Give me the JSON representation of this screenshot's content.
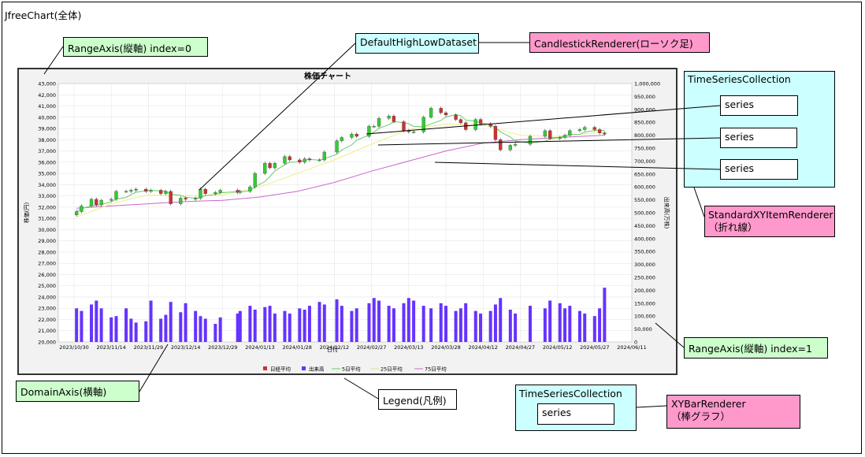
{
  "labels": {
    "chart_whole": "JfreeChart(全体)",
    "range_axis_0": "RangeAxis(縦軸) index=0",
    "dataset_hl": "DefaultHighLowDataset",
    "candle_renderer": "CandlestickRenderer(ローソク足)",
    "ts_collection_top": "TimeSeriesCollection",
    "series_a": "series",
    "series_b": "series",
    "series_c": "series",
    "xy_item_renderer_l1": "StandardXYItemRenderer",
    "xy_item_renderer_l2": "（折れ線）",
    "range_axis_1": "RangeAxis(縦軸) index=1",
    "domain_axis": "DomainAxis(横軸)",
    "legend": "Legend(凡例)",
    "ts_collection_bottom": "TimeSeriesCollection",
    "series_d": "series",
    "bar_renderer_l1": "XYBarRenderer",
    "bar_renderer_l2": "（棒グラフ）"
  },
  "colors": {
    "green_box": "#ccffcc",
    "cyan_box": "#ccffff",
    "pink_box": "#ff99cc",
    "candle_up": "#33cc33",
    "candle_down": "#cc3333",
    "volume_bar": "#6633ff",
    "ma5": "#66cc66",
    "ma25": "#eeee88",
    "ma75": "#cc66cc"
  },
  "chart_data": {
    "type": "candlestick",
    "title": "株価チャート",
    "xlabel": "日付",
    "ylabel_left": "株価(円)",
    "ylabel_right": "出来高(万株)",
    "ylim_left": [
      20000,
      43000
    ],
    "ylim_right": [
      0,
      1000000
    ],
    "y_ticks_left": [
      "20,000",
      "21,000",
      "22,000",
      "23,000",
      "24,000",
      "25,000",
      "26,000",
      "27,000",
      "28,000",
      "29,000",
      "30,000",
      "31,000",
      "32,000",
      "33,000",
      "34,000",
      "35,000",
      "36,000",
      "37,000",
      "38,000",
      "39,000",
      "40,000",
      "41,000",
      "42,000",
      "43,000"
    ],
    "y_ticks_right": [
      "0",
      "50,000",
      "100,000",
      "150,000",
      "200,000",
      "250,000",
      "300,000",
      "350,000",
      "400,000",
      "450,000",
      "500,000",
      "550,000",
      "600,000",
      "650,000",
      "700,000",
      "750,000",
      "800,000",
      "850,000",
      "900,000",
      "950,000",
      "1,000,000"
    ],
    "x_ticks": [
      "2023/10/30",
      "2023/11/14",
      "2023/11/29",
      "2023/12/14",
      "2023/12/29",
      "2024/01/13",
      "2024/01/28",
      "2024/02/12",
      "2024/02/27",
      "2024/03/13",
      "2024/03/28",
      "2024/04/12",
      "2024/04/27",
      "2024/05/12",
      "2024/05/27",
      "2024/06/11"
    ],
    "legend": [
      "日経平均",
      "出来高",
      "5日平均",
      "25日平均",
      "75日平均"
    ],
    "x_start": "2023/10/30",
    "x_end": "2024/06/11",
    "close_series": [
      [
        "2023/10/31",
        31600
      ],
      [
        "2023/11/02",
        32100
      ],
      [
        "2023/11/06",
        32700
      ],
      [
        "2023/11/08",
        32200
      ],
      [
        "2023/11/10",
        32600
      ],
      [
        "2023/11/14",
        32700
      ],
      [
        "2023/11/16",
        33400
      ],
      [
        "2023/11/20",
        33400
      ],
      [
        "2023/11/22",
        33500
      ],
      [
        "2023/11/24",
        33600
      ],
      [
        "2023/11/28",
        33400
      ],
      [
        "2023/11/30",
        33500
      ],
      [
        "2023/12/04",
        33200
      ],
      [
        "2023/12/06",
        33400
      ],
      [
        "2023/12/08",
        32300
      ],
      [
        "2023/12/12",
        32800
      ],
      [
        "2023/12/14",
        32700
      ],
      [
        "2023/12/18",
        32800
      ],
      [
        "2023/12/20",
        33600
      ],
      [
        "2023/12/22",
        33200
      ],
      [
        "2023/12/26",
        33300
      ],
      [
        "2023/12/28",
        33500
      ],
      [
        "2024/01/04",
        33300
      ],
      [
        "2024/01/05",
        33400
      ],
      [
        "2024/01/09",
        33800
      ],
      [
        "2024/01/11",
        35000
      ],
      [
        "2024/01/15",
        35900
      ],
      [
        "2024/01/17",
        35500
      ],
      [
        "2024/01/19",
        35900
      ],
      [
        "2024/01/23",
        36500
      ],
      [
        "2024/01/25",
        36200
      ],
      [
        "2024/01/29",
        36000
      ],
      [
        "2024/01/31",
        36300
      ],
      [
        "2024/02/02",
        36200
      ],
      [
        "2024/02/06",
        36200
      ],
      [
        "2024/02/08",
        36900
      ],
      [
        "2024/02/13",
        37900
      ],
      [
        "2024/02/15",
        38200
      ],
      [
        "2024/02/19",
        38500
      ],
      [
        "2024/02/21",
        38300
      ],
      [
        "2024/02/26",
        39200
      ],
      [
        "2024/02/28",
        39200
      ],
      [
        "2024/03/01",
        39900
      ],
      [
        "2024/03/05",
        40100
      ],
      [
        "2024/03/07",
        39600
      ],
      [
        "2024/03/11",
        38800
      ],
      [
        "2024/03/13",
        38700
      ],
      [
        "2024/03/15",
        38700
      ],
      [
        "2024/03/19",
        40000
      ],
      [
        "2024/03/22",
        40800
      ],
      [
        "2024/03/26",
        40400
      ],
      [
        "2024/03/28",
        40200
      ],
      [
        "2024/04/01",
        39800
      ],
      [
        "2024/04/03",
        39500
      ],
      [
        "2024/04/05",
        38900
      ],
      [
        "2024/04/09",
        39800
      ],
      [
        "2024/04/11",
        39400
      ],
      [
        "2024/04/15",
        39200
      ],
      [
        "2024/04/17",
        38000
      ],
      [
        "2024/04/19",
        37100
      ],
      [
        "2024/04/23",
        37500
      ],
      [
        "2024/04/25",
        37600
      ],
      [
        "2024/05/01",
        38300
      ],
      [
        "2024/05/07",
        38800
      ],
      [
        "2024/05/09",
        38100
      ],
      [
        "2024/05/13",
        38200
      ],
      [
        "2024/05/15",
        38400
      ],
      [
        "2024/05/17",
        38800
      ],
      [
        "2024/05/21",
        38900
      ],
      [
        "2024/05/23",
        39100
      ],
      [
        "2024/05/27",
        38900
      ],
      [
        "2024/05/29",
        38600
      ],
      [
        "2024/05/31",
        38500
      ]
    ],
    "volume_series": [
      [
        "2023/10/31",
        130000
      ],
      [
        "2023/11/02",
        120000
      ],
      [
        "2023/11/06",
        145000
      ],
      [
        "2023/11/08",
        160000
      ],
      [
        "2023/11/10",
        130000
      ],
      [
        "2023/11/14",
        95000
      ],
      [
        "2023/11/16",
        100000
      ],
      [
        "2023/11/20",
        130000
      ],
      [
        "2023/11/22",
        90000
      ],
      [
        "2023/11/24",
        75000
      ],
      [
        "2023/11/28",
        80000
      ],
      [
        "2023/11/30",
        160000
      ],
      [
        "2023/12/04",
        90000
      ],
      [
        "2023/12/06",
        105000
      ],
      [
        "2023/12/08",
        155000
      ],
      [
        "2023/12/12",
        115000
      ],
      [
        "2023/12/14",
        150000
      ],
      [
        "2023/12/18",
        120000
      ],
      [
        "2023/12/20",
        100000
      ],
      [
        "2023/12/22",
        90000
      ],
      [
        "2023/12/26",
        70000
      ],
      [
        "2023/12/28",
        95000
      ],
      [
        "2024/01/04",
        110000
      ],
      [
        "2024/01/05",
        120000
      ],
      [
        "2024/01/09",
        140000
      ],
      [
        "2024/01/11",
        125000
      ],
      [
        "2024/01/15",
        135000
      ],
      [
        "2024/01/17",
        140000
      ],
      [
        "2024/01/19",
        110000
      ],
      [
        "2024/01/23",
        120000
      ],
      [
        "2024/01/25",
        110000
      ],
      [
        "2024/01/29",
        130000
      ],
      [
        "2024/01/31",
        125000
      ],
      [
        "2024/02/02",
        140000
      ],
      [
        "2024/02/06",
        155000
      ],
      [
        "2024/02/08",
        145000
      ],
      [
        "2024/02/13",
        165000
      ],
      [
        "2024/02/15",
        140000
      ],
      [
        "2024/02/19",
        120000
      ],
      [
        "2024/02/21",
        130000
      ],
      [
        "2024/02/26",
        150000
      ],
      [
        "2024/02/28",
        170000
      ],
      [
        "2024/03/01",
        160000
      ],
      [
        "2024/03/05",
        140000
      ],
      [
        "2024/03/07",
        130000
      ],
      [
        "2024/03/11",
        150000
      ],
      [
        "2024/03/13",
        170000
      ],
      [
        "2024/03/15",
        160000
      ],
      [
        "2024/03/19",
        140000
      ],
      [
        "2024/03/22",
        130000
      ],
      [
        "2024/03/26",
        150000
      ],
      [
        "2024/03/28",
        140000
      ],
      [
        "2024/04/01",
        120000
      ],
      [
        "2024/04/03",
        130000
      ],
      [
        "2024/04/05",
        150000
      ],
      [
        "2024/04/09",
        120000
      ],
      [
        "2024/04/11",
        110000
      ],
      [
        "2024/04/15",
        120000
      ],
      [
        "2024/04/17",
        145000
      ],
      [
        "2024/04/19",
        170000
      ],
      [
        "2024/04/23",
        125000
      ],
      [
        "2024/04/25",
        110000
      ],
      [
        "2024/05/01",
        140000
      ],
      [
        "2024/05/07",
        130000
      ],
      [
        "2024/05/09",
        160000
      ],
      [
        "2024/05/13",
        150000
      ],
      [
        "2024/05/15",
        130000
      ],
      [
        "2024/05/17",
        140000
      ],
      [
        "2024/05/21",
        120000
      ],
      [
        "2024/05/23",
        110000
      ],
      [
        "2024/05/27",
        100000
      ],
      [
        "2024/05/29",
        130000
      ],
      [
        "2024/05/31",
        210000
      ]
    ],
    "ma25_series": [
      [
        "2023/10/31",
        31100
      ],
      [
        "2023/11/14",
        32300
      ],
      [
        "2023/11/29",
        33100
      ],
      [
        "2023/12/14",
        33000
      ],
      [
        "2023/12/29",
        33100
      ],
      [
        "2024/01/13",
        33800
      ],
      [
        "2024/01/28",
        35000
      ],
      [
        "2024/02/12",
        36200
      ],
      [
        "2024/02/27",
        37600
      ],
      [
        "2024/03/13",
        38900
      ],
      [
        "2024/03/28",
        39400
      ],
      [
        "2024/04/12",
        39300
      ],
      [
        "2024/04/27",
        38400
      ],
      [
        "2024/05/12",
        38300
      ],
      [
        "2024/05/31",
        38700
      ]
    ],
    "ma75_series": [
      [
        "2023/10/31",
        31900
      ],
      [
        "2023/11/14",
        32100
      ],
      [
        "2023/11/29",
        32300
      ],
      [
        "2023/12/14",
        32500
      ],
      [
        "2023/12/29",
        32600
      ],
      [
        "2024/01/13",
        32900
      ],
      [
        "2024/01/28",
        33400
      ],
      [
        "2024/02/12",
        34200
      ],
      [
        "2024/02/27",
        35200
      ],
      [
        "2024/03/13",
        36100
      ],
      [
        "2024/03/28",
        37000
      ],
      [
        "2024/04/12",
        37700
      ],
      [
        "2024/04/27",
        38000
      ],
      [
        "2024/05/12",
        38200
      ],
      [
        "2024/05/31",
        38400
      ]
    ]
  }
}
